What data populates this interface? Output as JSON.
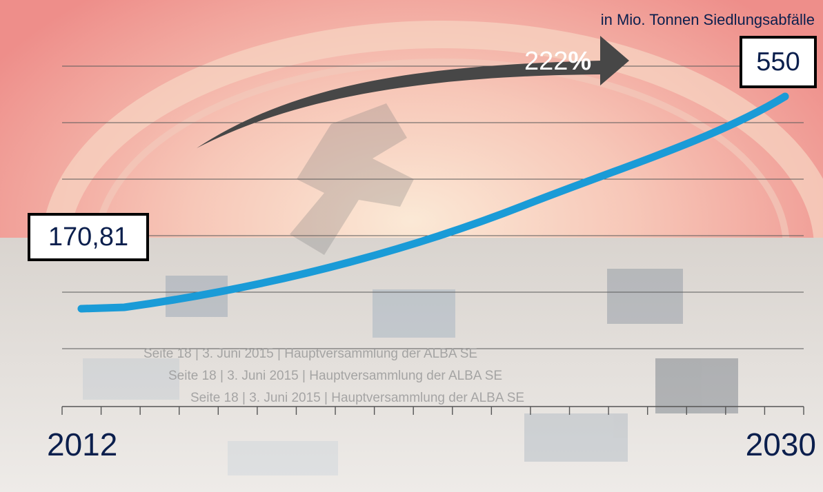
{
  "chart_data": {
    "type": "line",
    "title": "",
    "unit_label": "in Mio. Tonnen Siedlungsabfälle",
    "x": [
      "2012",
      "2030"
    ],
    "series": [
      {
        "values": [
          170.81,
          550
        ]
      }
    ],
    "data_labels": [
      "170,81",
      "550"
    ],
    "growth_label": "222",
    "growth_suffix": "%",
    "xlabel": "",
    "ylabel": "",
    "grid": true,
    "line_color": "#1a9bd7"
  },
  "footer_lines": [
    "Seite 18 | 3. Juni 2015 | Hauptversammlung der ALBA SE",
    "Seite 18 | 3. Juni 2015 | Hauptversammlung der ALBA SE",
    "Seite 18 | 3. Juni 2015 | Hauptversammlung der ALBA SE"
  ]
}
